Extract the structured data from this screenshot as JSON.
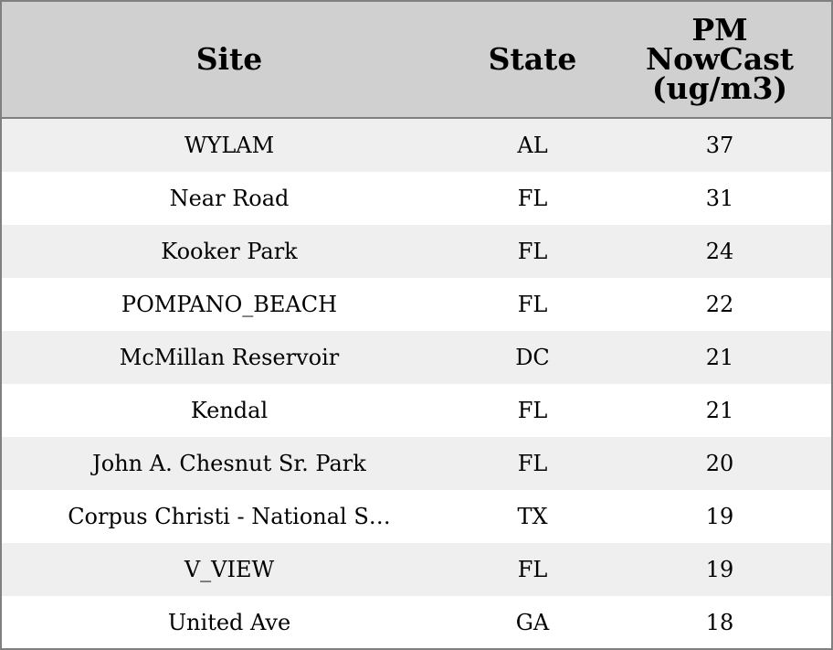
{
  "table": {
    "header": [
      "Site",
      "State",
      "PM NowCast (ug/m3)"
    ],
    "rows": [
      [
        "WYLAM",
        "AL",
        37
      ],
      [
        "Near Road",
        "FL",
        31
      ],
      [
        "Kooker Park",
        "FL",
        24
      ],
      [
        "POMPANO_BEACH",
        "FL",
        22
      ],
      [
        "McMillan Reservoir",
        "DC",
        21
      ],
      [
        "Kendal",
        "FL",
        21
      ],
      [
        "John A. Chesnut Sr. Park",
        "FL",
        20
      ],
      [
        "Corpus Christi - National S…",
        "TX",
        19
      ],
      [
        "V_VIEW",
        "FL",
        19
      ],
      [
        "United Ave",
        "GA",
        18
      ]
    ]
  }
}
